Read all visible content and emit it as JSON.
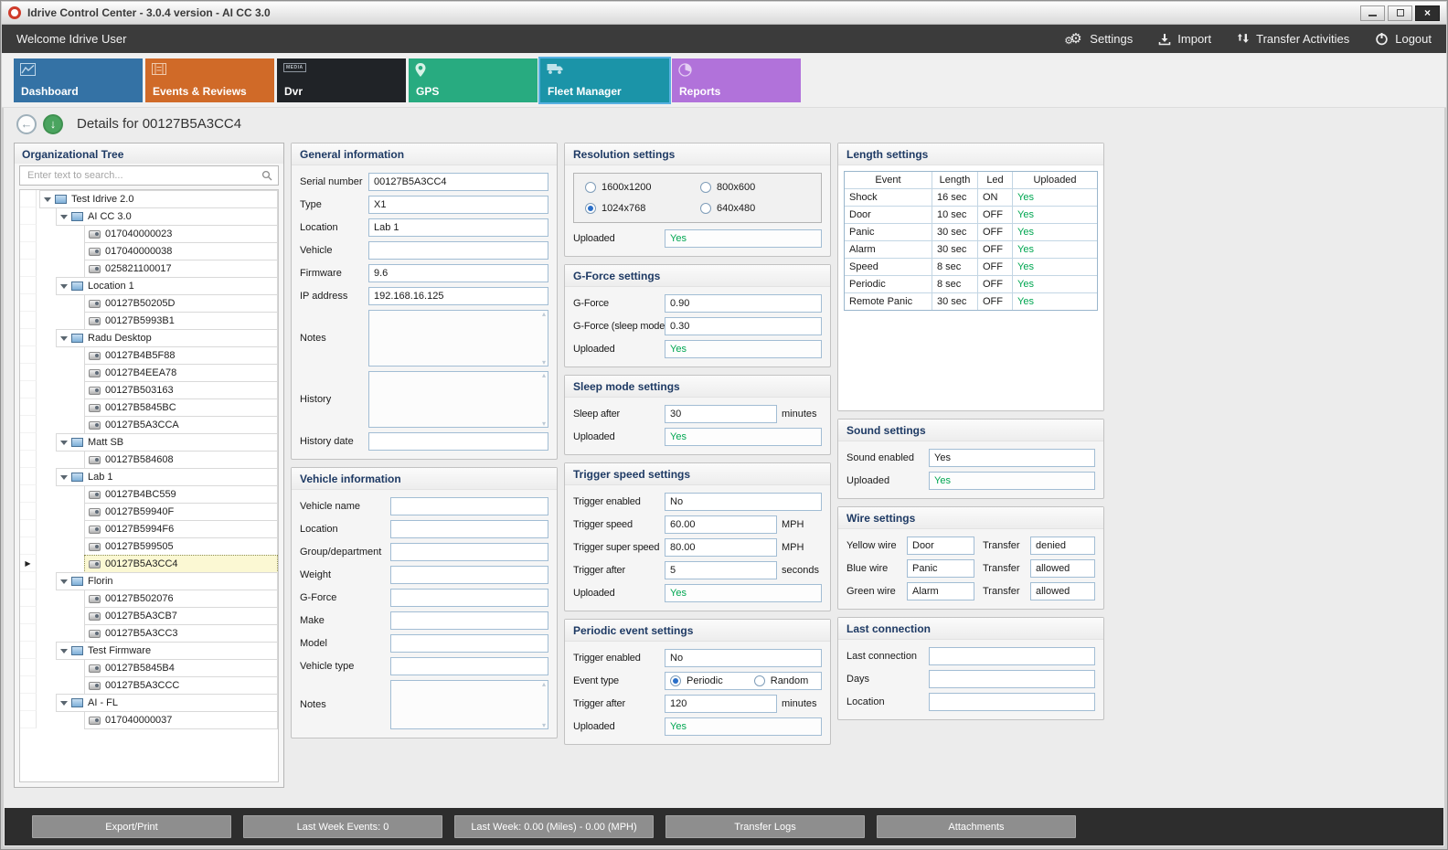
{
  "window": {
    "title": "Idrive Control Center - 3.0.4 version - AI CC 3.0"
  },
  "menubar": {
    "welcome": "Welcome Idrive User",
    "settings": "Settings",
    "import": "Import",
    "transfer": "Transfer Activities",
    "logout": "Logout"
  },
  "tabs": [
    {
      "label": "Dashboard",
      "color": "#3472a5",
      "selected": false
    },
    {
      "label": "Events & Reviews",
      "color": "#d06a28",
      "selected": false
    },
    {
      "label": "Dvr",
      "color": "#202327",
      "selected": false,
      "badge": "MEDIA"
    },
    {
      "label": "GPS",
      "color": "#28ab80",
      "selected": false
    },
    {
      "label": "Fleet Manager",
      "color": "#1b94a8",
      "selected": true
    },
    {
      "label": "Reports",
      "color": "#b172da",
      "selected": false
    }
  ],
  "details": {
    "title": "Details for 00127B5A3CC4"
  },
  "tree": {
    "title": "Organizational Tree",
    "search_placeholder": "Enter text to search...",
    "nodes": [
      {
        "label": "Test Idrive 2.0",
        "level": 0,
        "kind": "group"
      },
      {
        "label": "AI CC 3.0",
        "level": 1,
        "kind": "group"
      },
      {
        "label": "017040000023",
        "level": 2,
        "kind": "device"
      },
      {
        "label": "017040000038",
        "level": 2,
        "kind": "device"
      },
      {
        "label": "025821100017",
        "level": 2,
        "kind": "device"
      },
      {
        "label": "Location 1",
        "level": 1,
        "kind": "group"
      },
      {
        "label": "00127B50205D",
        "level": 2,
        "kind": "device"
      },
      {
        "label": "00127B5993B1",
        "level": 2,
        "kind": "device"
      },
      {
        "label": "Radu Desktop",
        "level": 1,
        "kind": "group"
      },
      {
        "label": "00127B4B5F88",
        "level": 2,
        "kind": "device"
      },
      {
        "label": "00127B4EEA78",
        "level": 2,
        "kind": "device"
      },
      {
        "label": "00127B503163",
        "level": 2,
        "kind": "device"
      },
      {
        "label": "00127B5845BC",
        "level": 2,
        "kind": "device"
      },
      {
        "label": "00127B5A3CCA",
        "level": 2,
        "kind": "device"
      },
      {
        "label": "Matt SB",
        "level": 1,
        "kind": "group"
      },
      {
        "label": "00127B584608",
        "level": 2,
        "kind": "device"
      },
      {
        "label": "Lab 1",
        "level": 1,
        "kind": "group"
      },
      {
        "label": "00127B4BC559",
        "level": 2,
        "kind": "device"
      },
      {
        "label": "00127B59940F",
        "level": 2,
        "kind": "device"
      },
      {
        "label": "00127B5994F6",
        "level": 2,
        "kind": "device"
      },
      {
        "label": "00127B599505",
        "level": 2,
        "kind": "device"
      },
      {
        "label": "00127B5A3CC4",
        "level": 2,
        "kind": "device",
        "selected": true
      },
      {
        "label": "Florin",
        "level": 1,
        "kind": "group"
      },
      {
        "label": "00127B502076",
        "level": 2,
        "kind": "device"
      },
      {
        "label": "00127B5A3CB7",
        "level": 2,
        "kind": "device"
      },
      {
        "label": "00127B5A3CC3",
        "level": 2,
        "kind": "device"
      },
      {
        "label": "Test Firmware",
        "level": 1,
        "kind": "group"
      },
      {
        "label": "00127B5845B4",
        "level": 2,
        "kind": "device"
      },
      {
        "label": "00127B5A3CCC",
        "level": 2,
        "kind": "device"
      },
      {
        "label": "AI - FL",
        "level": 1,
        "kind": "group"
      },
      {
        "label": "017040000037",
        "level": 2,
        "kind": "device"
      }
    ]
  },
  "general": {
    "title": "General information",
    "fields": [
      {
        "label": "Serial number",
        "value": "00127B5A3CC4",
        "type": "input"
      },
      {
        "label": "Type",
        "value": "X1",
        "type": "input"
      },
      {
        "label": "Location",
        "value": "Lab 1",
        "type": "input"
      },
      {
        "label": "Vehicle",
        "value": "",
        "type": "input"
      },
      {
        "label": "Firmware",
        "value": "9.6",
        "type": "input"
      },
      {
        "label": "IP address",
        "value": "192.168.16.125",
        "type": "input"
      },
      {
        "label": "Notes",
        "value": "",
        "type": "area"
      },
      {
        "label": "History",
        "value": "",
        "type": "area"
      },
      {
        "label": "History date",
        "value": "",
        "type": "input"
      }
    ]
  },
  "vehicle": {
    "title": "Vehicle information",
    "fields": [
      {
        "label": "Vehicle name",
        "value": "",
        "type": "input"
      },
      {
        "label": "Location",
        "value": "",
        "type": "input"
      },
      {
        "label": "Group/department",
        "value": "",
        "type": "input"
      },
      {
        "label": "Weight",
        "value": "",
        "type": "input"
      },
      {
        "label": "G-Force",
        "value": "",
        "type": "input"
      },
      {
        "label": "Make",
        "value": "",
        "type": "input"
      },
      {
        "label": "Model",
        "value": "",
        "type": "input"
      },
      {
        "label": "Vehicle type",
        "value": "",
        "type": "input"
      },
      {
        "label": "Notes",
        "value": "",
        "type": "area"
      }
    ]
  },
  "resolution": {
    "title": "Resolution settings",
    "fields": [
      {
        "type": "radiogrid",
        "options": [
          {
            "label": "1600x1200",
            "checked": false
          },
          {
            "label": "800x600",
            "checked": false
          },
          {
            "label": "1024x768",
            "checked": true
          },
          {
            "label": "640x480",
            "checked": false
          }
        ]
      },
      {
        "label": "Uploaded",
        "value": "Yes",
        "type": "up"
      }
    ]
  },
  "gforce": {
    "title": "G-Force settings",
    "fields": [
      {
        "label": "G-Force",
        "value": "0.90",
        "type": "input"
      },
      {
        "label": "G-Force (sleep mode)",
        "value": "0.30",
        "type": "input"
      },
      {
        "label": "Uploaded",
        "value": "Yes",
        "type": "up"
      }
    ]
  },
  "sleep": {
    "title": "Sleep mode settings",
    "fields": [
      {
        "label": "Sleep after",
        "value": "30",
        "type": "input",
        "suffix": "minutes"
      },
      {
        "label": "Uploaded",
        "value": "Yes",
        "type": "up"
      }
    ]
  },
  "trigger_speed": {
    "title": "Trigger speed settings",
    "fields": [
      {
        "label": "Trigger enabled",
        "value": "No",
        "type": "input"
      },
      {
        "label": "Trigger speed",
        "value": "60.00",
        "type": "input",
        "suffix": "MPH"
      },
      {
        "label": "Trigger super speed",
        "value": "80.00",
        "type": "input",
        "suffix": "MPH"
      },
      {
        "label": "Trigger after",
        "value": "5",
        "type": "input",
        "suffix": "seconds"
      },
      {
        "label": "Uploaded",
        "value": "Yes",
        "type": "up"
      }
    ]
  },
  "periodic": {
    "title": "Periodic event settings",
    "fields": [
      {
        "label": "Trigger enabled",
        "value": "No",
        "type": "input"
      },
      {
        "label": "Event type",
        "type": "radios",
        "options": [
          {
            "label": "Periodic",
            "checked": true
          },
          {
            "label": "Random",
            "checked": false
          }
        ]
      },
      {
        "label": "Trigger after",
        "value": "120",
        "type": "input",
        "suffix": "minutes"
      },
      {
        "label": "Uploaded",
        "value": "Yes",
        "type": "up"
      }
    ]
  },
  "length": {
    "title": "Length settings",
    "headers": [
      "Event",
      "Length",
      "Led",
      "Uploaded"
    ],
    "rows": [
      [
        "Shock",
        "16 sec",
        "ON",
        "Yes"
      ],
      [
        "Door",
        "10 sec",
        "OFF",
        "Yes"
      ],
      [
        "Panic",
        "30 sec",
        "OFF",
        "Yes"
      ],
      [
        "Alarm",
        "30 sec",
        "OFF",
        "Yes"
      ],
      [
        "Speed",
        "8 sec",
        "OFF",
        "Yes"
      ],
      [
        "Periodic",
        "8 sec",
        "OFF",
        "Yes"
      ],
      [
        "Remote Panic",
        "30 sec",
        "OFF",
        "Yes"
      ]
    ]
  },
  "sound": {
    "title": "Sound settings",
    "fields": [
      {
        "label": "Sound enabled",
        "value": "Yes",
        "type": "input"
      },
      {
        "label": "Uploaded",
        "value": "Yes",
        "type": "up"
      }
    ]
  },
  "wire": {
    "title": "Wire settings",
    "fields": [
      {
        "type": "wire",
        "label": "Yellow wire",
        "value": "Door",
        "label2": "Transfer",
        "value2": "denied"
      },
      {
        "type": "wire",
        "label": "Blue wire",
        "value": "Panic",
        "label2": "Transfer",
        "value2": "allowed"
      },
      {
        "type": "wire",
        "label": "Green wire",
        "value": "Alarm",
        "label2": "Transfer",
        "value2": "allowed"
      }
    ]
  },
  "last_connection": {
    "title": "Last connection",
    "fields": [
      {
        "label": "Last connection",
        "value": "",
        "type": "input"
      },
      {
        "label": "Days",
        "value": "",
        "type": "input"
      },
      {
        "label": "Location",
        "value": "",
        "type": "input"
      }
    ]
  },
  "bottombar": {
    "buttons": [
      "Export/Print",
      "Last Week Events: 0",
      "Last Week: 0.00 (Miles) - 0.00 (MPH)",
      "Transfer Logs",
      "Attachments"
    ]
  },
  "colors": {
    "uploaded_green": "#00a651",
    "selected_tab_border": "#58b1e2",
    "selected_row_bg": "#fbf8d3"
  }
}
